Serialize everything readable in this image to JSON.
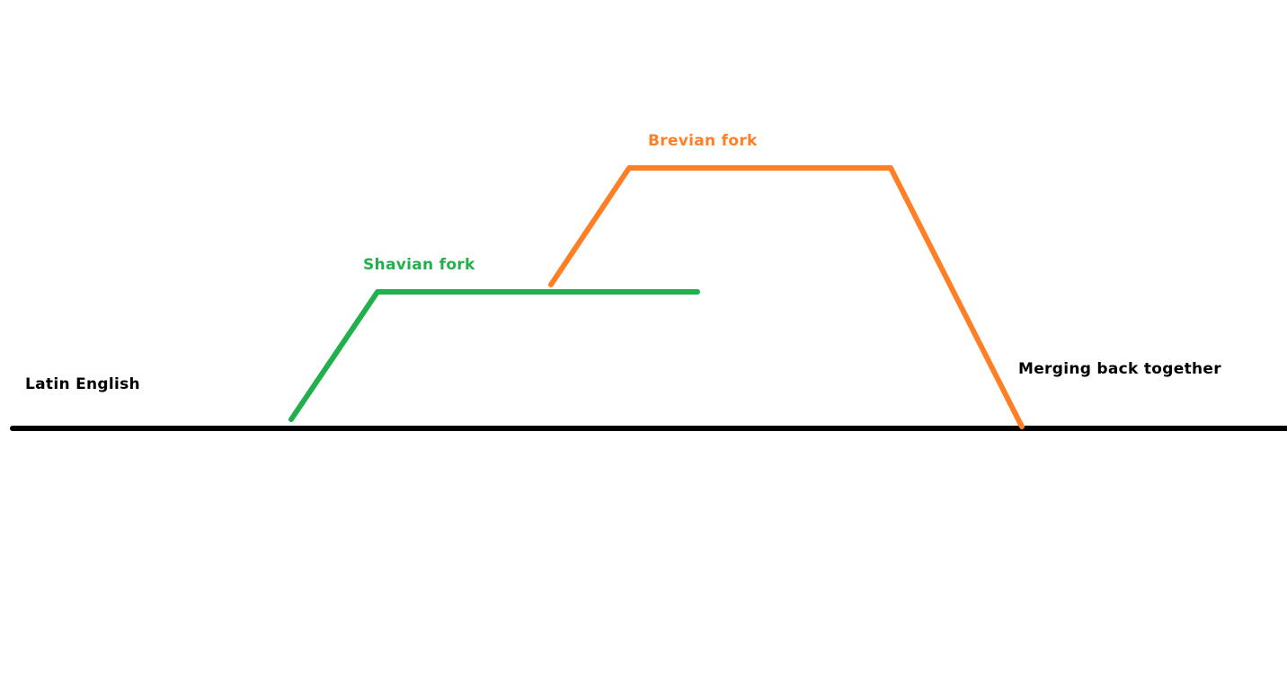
{
  "colors": {
    "main_line": "#000000",
    "shavian": "#22b04c",
    "brevian": "#ff7f27",
    "label_text": "#000000"
  },
  "labels": {
    "main": "Latin English",
    "shavian": "Shavian fork",
    "brevian": "Brevian fork",
    "merge": "Merging back together"
  }
}
